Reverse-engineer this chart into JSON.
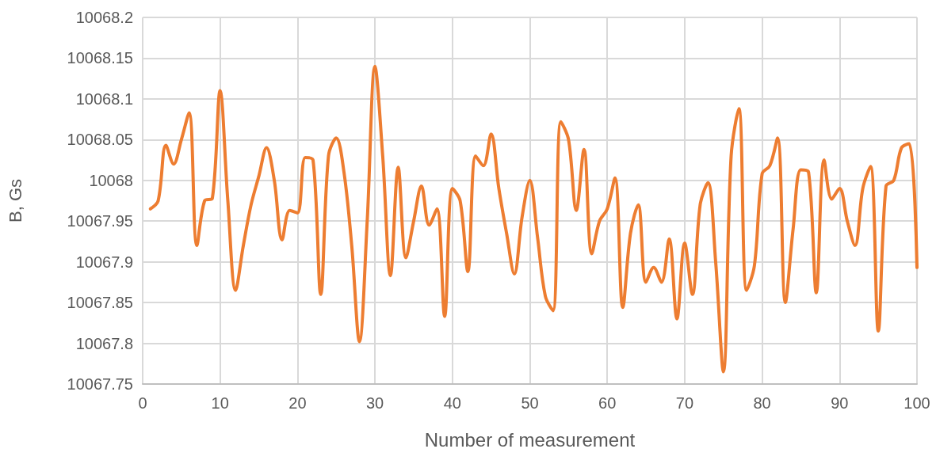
{
  "chart_data": {
    "type": "line",
    "xlabel": "Number of measurement",
    "ylabel": "B, Gs",
    "x": [
      1,
      2,
      3,
      4,
      5,
      6,
      7,
      8,
      9,
      10,
      11,
      12,
      13,
      14,
      15,
      16,
      17,
      18,
      19,
      20,
      21,
      22,
      23,
      24,
      25,
      26,
      27,
      28,
      29,
      30,
      31,
      32,
      33,
      34,
      35,
      36,
      37,
      38,
      39,
      40,
      41,
      42,
      43,
      44,
      45,
      46,
      47,
      48,
      49,
      50,
      51,
      52,
      53,
      54,
      55,
      56,
      57,
      58,
      59,
      60,
      61,
      62,
      63,
      64,
      65,
      66,
      67,
      68,
      69,
      70,
      71,
      72,
      73,
      74,
      75,
      76,
      77,
      78,
      79,
      80,
      81,
      82,
      83,
      84,
      85,
      86,
      87,
      88,
      89,
      90,
      91,
      92,
      93,
      94,
      95,
      96,
      97,
      98,
      99,
      100
    ],
    "series": [
      {
        "color": "#ed7d31",
        "values": [
          10067.965,
          10067.975,
          10068.043,
          10068.02,
          10068.05,
          10068.083,
          10067.92,
          10067.975,
          10067.978,
          10068.11,
          10067.975,
          10067.865,
          10067.92,
          10067.97,
          10068.005,
          10068.04,
          10068.0,
          10067.927,
          10067.963,
          10067.96,
          10068.028,
          10068.025,
          10067.86,
          10068.03,
          10068.052,
          10068.01,
          10067.92,
          10067.802,
          10067.95,
          10068.14,
          10068.03,
          10067.883,
          10068.016,
          10067.905,
          10067.95,
          10067.993,
          10067.945,
          10067.965,
          10067.833,
          10067.99,
          10067.975,
          10067.888,
          10068.03,
          10068.018,
          10068.057,
          10067.99,
          10067.935,
          10067.885,
          10067.955,
          10068.0,
          10067.93,
          10067.858,
          10067.84,
          10068.072,
          10068.05,
          10067.963,
          10068.038,
          10067.91,
          10067.95,
          10067.965,
          10068.003,
          10067.844,
          10067.935,
          10067.97,
          10067.875,
          10067.893,
          10067.875,
          10067.928,
          10067.83,
          10067.923,
          10067.86,
          10067.97,
          10067.997,
          10067.9,
          10067.765,
          10068.03,
          10068.088,
          10067.865,
          10067.895,
          10068.008,
          10068.018,
          10068.052,
          10067.85,
          10067.94,
          10068.013,
          10068.01,
          10067.862,
          10068.025,
          10067.977,
          10067.99,
          10067.95,
          10067.92,
          10067.99,
          10068.017,
          10067.815,
          10067.993,
          10068.0,
          10068.04,
          10068.045,
          10067.893
        ]
      }
    ],
    "xlim": [
      0,
      100
    ],
    "xticks": [
      0,
      10,
      20,
      30,
      40,
      50,
      60,
      70,
      80,
      90,
      100
    ],
    "ylim": [
      10067.75,
      10068.2
    ],
    "yticks": [
      10067.75,
      10067.8,
      10067.85,
      10067.9,
      10067.95,
      10068,
      10068.05,
      10068.1,
      10068.15,
      10068.2
    ],
    "grid": true,
    "marker": "none",
    "line_style": "solid"
  }
}
